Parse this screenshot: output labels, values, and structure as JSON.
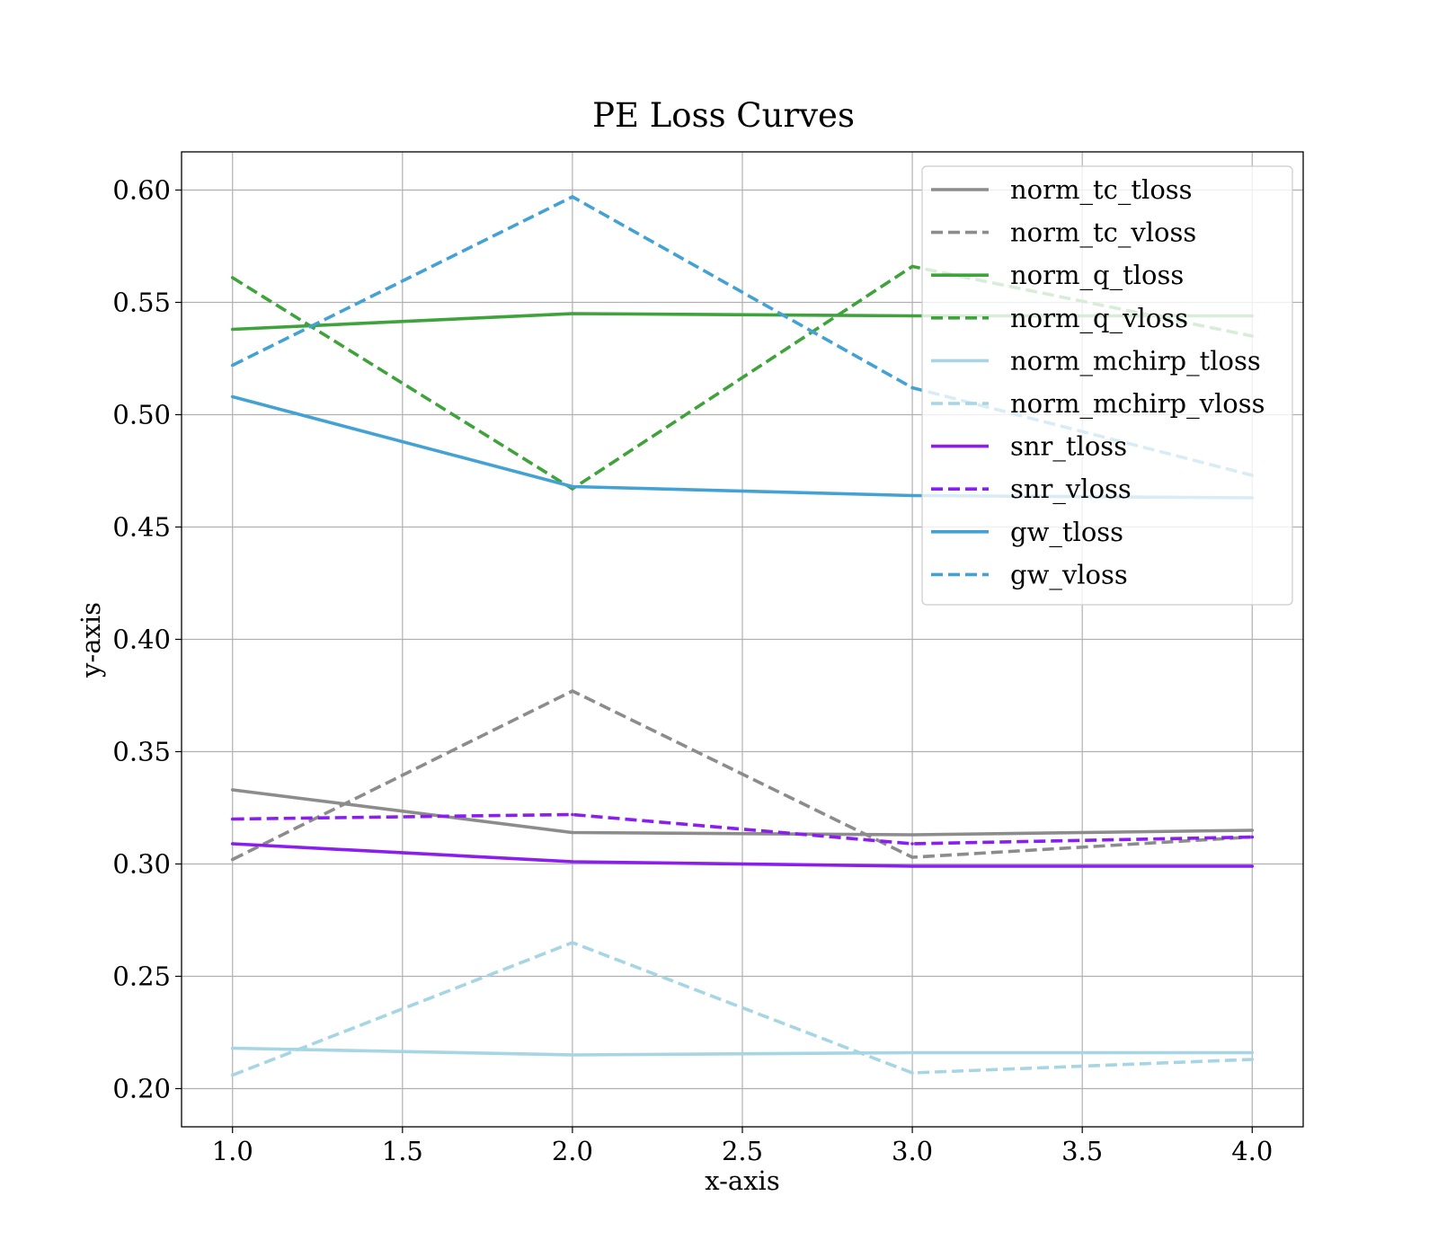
{
  "chart_data": {
    "type": "line",
    "title": "PE Loss Curves",
    "xlabel": "x-axis",
    "ylabel": "y-axis",
    "xlim": [
      0.85,
      4.15
    ],
    "ylim": [
      0.183,
      0.617
    ],
    "xticks": [
      1.0,
      1.5,
      2.0,
      2.5,
      3.0,
      3.5,
      4.0
    ],
    "xtick_labels": [
      "1.0",
      "1.5",
      "2.0",
      "2.5",
      "3.0",
      "3.5",
      "4.0"
    ],
    "yticks": [
      0.2,
      0.25,
      0.3,
      0.35,
      0.4,
      0.45,
      0.5,
      0.55,
      0.6
    ],
    "ytick_labels": [
      "0.20",
      "0.25",
      "0.30",
      "0.35",
      "0.40",
      "0.45",
      "0.50",
      "0.55",
      "0.60"
    ],
    "grid": true,
    "legend_position": "upper-right",
    "x": [
      1,
      2,
      3,
      4
    ],
    "series": [
      {
        "name": "norm_tc_tloss",
        "values": [
          0.333,
          0.314,
          0.313,
          0.315
        ],
        "color": "#8c8c8c",
        "dash": "solid"
      },
      {
        "name": "norm_tc_vloss",
        "values": [
          0.302,
          0.377,
          0.303,
          0.312
        ],
        "color": "#8c8c8c",
        "dash": "dashed"
      },
      {
        "name": "norm_q_tloss",
        "values": [
          0.538,
          0.545,
          0.544,
          0.544
        ],
        "color": "#3fa33b",
        "dash": "solid"
      },
      {
        "name": "norm_q_vloss",
        "values": [
          0.561,
          0.467,
          0.566,
          0.535
        ],
        "color": "#3fa33b",
        "dash": "dashed"
      },
      {
        "name": "norm_mchirp_tloss",
        "values": [
          0.218,
          0.215,
          0.216,
          0.216
        ],
        "color": "#a6d5e3",
        "dash": "solid"
      },
      {
        "name": "norm_mchirp_vloss",
        "values": [
          0.206,
          0.265,
          0.207,
          0.213
        ],
        "color": "#a6d5e3",
        "dash": "dashed"
      },
      {
        "name": "snr_tloss",
        "values": [
          0.309,
          0.301,
          0.299,
          0.299
        ],
        "color": "#8a1eef",
        "dash": "solid"
      },
      {
        "name": "snr_vloss",
        "values": [
          0.32,
          0.322,
          0.309,
          0.312
        ],
        "color": "#8a1eef",
        "dash": "dashed"
      },
      {
        "name": "gw_tloss",
        "values": [
          0.508,
          0.468,
          0.464,
          0.463
        ],
        "color": "#43a2d3",
        "dash": "solid"
      },
      {
        "name": "gw_vloss",
        "values": [
          0.522,
          0.597,
          0.512,
          0.473
        ],
        "color": "#43a2d3",
        "dash": "dashed"
      }
    ]
  }
}
